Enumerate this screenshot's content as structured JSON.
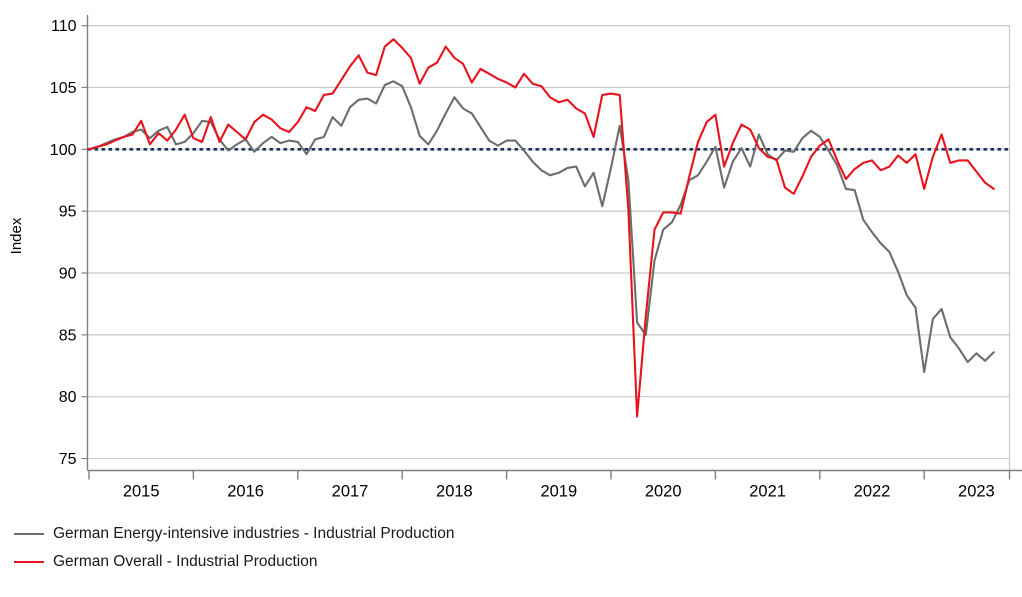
{
  "chart_data": {
    "type": "line",
    "title": "",
    "ylabel": "Index",
    "xlabel": "",
    "ylim": [
      74,
      111
    ],
    "yticks": [
      75,
      80,
      85,
      90,
      95,
      100,
      105,
      110
    ],
    "xtick_year_labels": [
      "2015",
      "2016",
      "2017",
      "2018",
      "2019",
      "2020",
      "2021",
      "2022",
      "2023"
    ],
    "x_start": "2015-01",
    "x_end": "2023-09",
    "x_frequency": "monthly",
    "grid": "horizontal",
    "legend_position": "bottom-left",
    "reference_line": {
      "value": 100,
      "style": "dotted",
      "color": "#17365d"
    },
    "axis_color": "#808080",
    "gridline_color": "#c9c9c9",
    "series": [
      {
        "name": "German Energy-intensive industries - Industrial Production",
        "color": "#6d6d6d",
        "values": [
          100.0,
          100.2,
          100.5,
          100.8,
          101.0,
          101.4,
          101.6,
          100.9,
          101.5,
          101.8,
          100.4,
          100.6,
          101.3,
          102.3,
          102.2,
          100.8,
          99.9,
          100.4,
          100.8,
          99.8,
          100.5,
          101.0,
          100.5,
          100.7,
          100.6,
          99.6,
          100.8,
          101.0,
          102.6,
          101.9,
          103.4,
          104.0,
          104.1,
          103.7,
          105.2,
          105.5,
          105.1,
          103.4,
          101.1,
          100.4,
          101.5,
          102.9,
          104.2,
          103.3,
          102.9,
          101.8,
          100.7,
          100.3,
          100.7,
          100.7,
          99.9,
          99.0,
          98.3,
          97.9,
          98.1,
          98.5,
          98.6,
          97.0,
          98.1,
          95.4,
          98.5,
          101.9,
          97.5,
          86.0,
          85.0,
          91.0,
          93.5,
          94.1,
          95.5,
          97.5,
          97.9,
          99.0,
          100.2,
          96.9,
          99.0,
          100.1,
          98.6,
          101.2,
          99.6,
          99.1,
          99.9,
          99.8,
          100.9,
          101.5,
          101.0,
          99.9,
          98.7,
          96.8,
          96.7,
          94.3,
          93.3,
          92.4,
          91.7,
          90.1,
          88.2,
          87.2,
          82.0,
          86.3,
          87.1,
          84.8,
          83.9,
          82.8,
          83.5,
          82.9,
          83.6
        ]
      },
      {
        "name": "German Overall - Industrial Production",
        "color": "#e8131d",
        "values": [
          100.0,
          100.2,
          100.4,
          100.7,
          101.0,
          101.2,
          102.3,
          100.4,
          101.3,
          100.7,
          101.6,
          102.8,
          100.9,
          100.6,
          102.6,
          100.6,
          102.0,
          101.4,
          100.8,
          102.2,
          102.8,
          102.4,
          101.7,
          101.4,
          102.2,
          103.4,
          103.1,
          104.4,
          104.5,
          105.6,
          106.7,
          107.6,
          106.2,
          106.0,
          108.3,
          108.9,
          108.2,
          107.4,
          105.3,
          106.6,
          107.0,
          108.3,
          107.4,
          106.9,
          105.4,
          106.5,
          106.1,
          105.7,
          105.4,
          105.0,
          106.1,
          105.3,
          105.1,
          104.2,
          103.8,
          104.0,
          103.3,
          102.9,
          101.0,
          104.4,
          104.5,
          104.4,
          95.1,
          78.4,
          86.5,
          93.5,
          94.9,
          94.9,
          94.8,
          97.8,
          100.6,
          102.2,
          102.8,
          98.6,
          100.5,
          102.0,
          101.6,
          100.1,
          99.4,
          99.2,
          96.9,
          96.4,
          97.8,
          99.4,
          100.3,
          100.8,
          99.1,
          97.6,
          98.4,
          98.9,
          99.1,
          98.3,
          98.6,
          99.5,
          98.9,
          99.6,
          96.8,
          99.4,
          101.2,
          98.9,
          99.1,
          99.1,
          98.2,
          97.3,
          96.8
        ]
      }
    ]
  },
  "legend": {
    "items": [
      {
        "label": "German Energy-intensive industries - Industrial Production"
      },
      {
        "label": "German Overall - Industrial Production"
      }
    ]
  }
}
